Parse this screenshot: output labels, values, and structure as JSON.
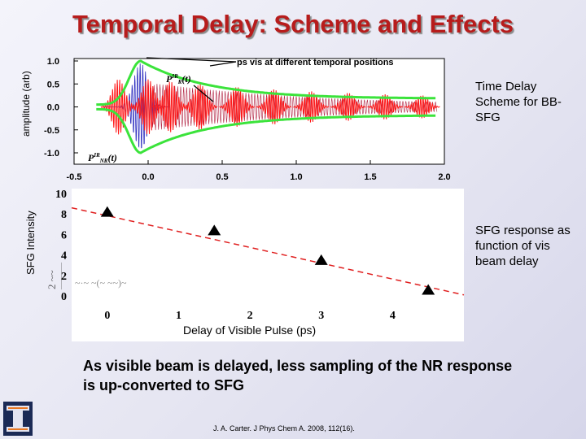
{
  "title": "Temporal Delay: Scheme and Effects",
  "top_panel": {
    "y_axis_label": "amplitude (arb)",
    "y_ticks": [
      "1.0",
      "0.5",
      "0.0",
      "-0.5",
      "-1.0"
    ],
    "x_ticks": [
      "-0.5",
      "0.0",
      "0.5",
      "1.0",
      "1.5",
      "2.0"
    ],
    "annotation": "ps vis at different temporal positions",
    "label_resonant_base": "P",
    "label_resonant_sup": "IR",
    "label_resonant_sub": "R",
    "label_resonant_arg": "(t)",
    "label_nonresonant_base": "P",
    "label_nonresonant_sup": "IR",
    "label_nonresonant_sub": "NR",
    "label_nonresonant_arg": "(t)",
    "colors": {
      "envelope": "#3be33b",
      "resonant": "#ff1a1a",
      "nonresonant": "#3030c0",
      "decay": "#b02040"
    },
    "side_label": "Time Delay Scheme for BB-SFG"
  },
  "bottom_panel": {
    "y_axis_label": "SFG Intensity",
    "x_axis_label": "Delay of Visible Pulse (ps)",
    "y_ticks": [
      "10",
      "8",
      "6",
      "4",
      "2",
      "0"
    ],
    "x_ticks": [
      "0",
      "1",
      "2",
      "3",
      "4"
    ],
    "side_label": "SFG response as function of vis beam delay"
  },
  "chart_data": {
    "type": "scatter",
    "title": "",
    "xlabel": "Delay of Visible Pulse (ps)",
    "ylabel": "SFG Intensity",
    "xlim": [
      -0.5,
      5
    ],
    "ylim": [
      0,
      10
    ],
    "x": [
      0,
      1.5,
      3,
      4.5
    ],
    "y": [
      8.2,
      6.4,
      3.5,
      0.6
    ],
    "trend_line": {
      "x": [
        -0.5,
        5
      ],
      "y": [
        8.6,
        0.1
      ],
      "style": "dashed",
      "color": "#e02020"
    },
    "marker": "triangle",
    "grid": false
  },
  "caption": "As visible beam is delayed, less sampling of the NR response is up-converted to SFG",
  "citation": "J. A. Carter. J Phys Chem A. 2008, 112(16)."
}
